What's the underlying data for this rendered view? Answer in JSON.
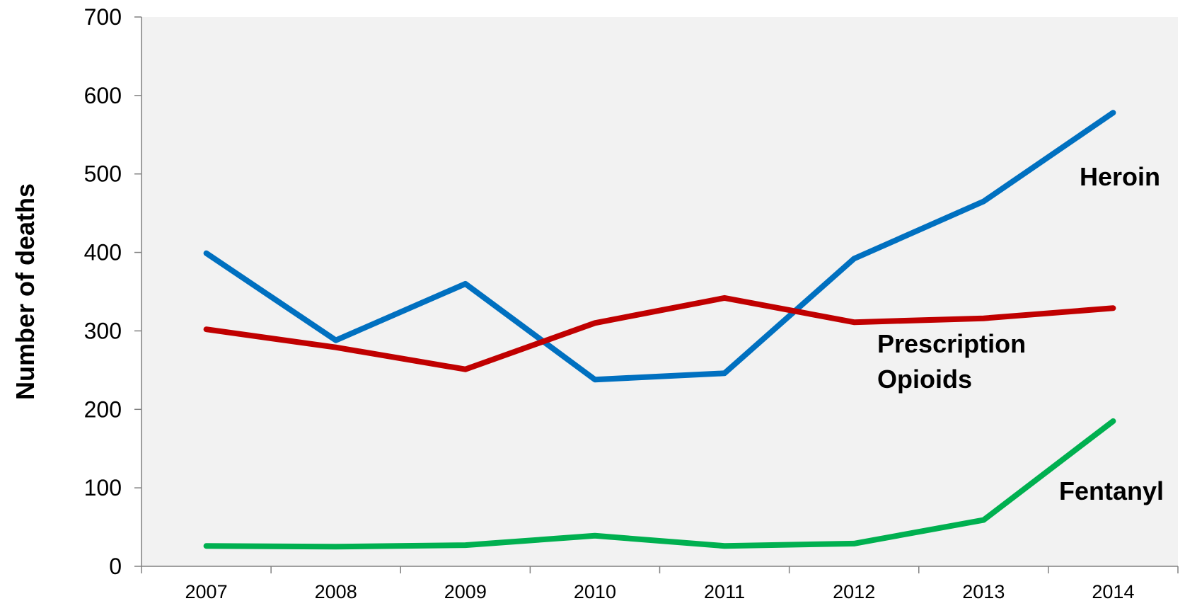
{
  "chart_data": {
    "type": "line",
    "title": "",
    "xlabel": "",
    "ylabel": "Number of deaths",
    "ylim": [
      0,
      700
    ],
    "yticks": [
      0,
      100,
      200,
      300,
      400,
      500,
      600,
      700
    ],
    "categories": [
      "2007",
      "2008",
      "2009",
      "2010",
      "2011",
      "2012",
      "2013",
      "2014"
    ],
    "grid": false,
    "legend": "inline labels",
    "plot_background": "#f2f2f2",
    "series": [
      {
        "name": "Heroin",
        "label_lines": [
          "Heroin"
        ],
        "color": "#0070c0",
        "values": [
          399,
          288,
          360,
          238,
          246,
          392,
          465,
          578
        ]
      },
      {
        "name": "Prescription Opioids",
        "label_lines": [
          "Prescription",
          "Opioids"
        ],
        "color": "#c00000",
        "values": [
          302,
          279,
          251,
          310,
          342,
          311,
          316,
          329
        ]
      },
      {
        "name": "Fentanyl",
        "label_lines": [
          "Fentanyl"
        ],
        "color": "#00b050",
        "values": [
          26,
          25,
          27,
          39,
          26,
          29,
          59,
          185
        ]
      }
    ]
  }
}
